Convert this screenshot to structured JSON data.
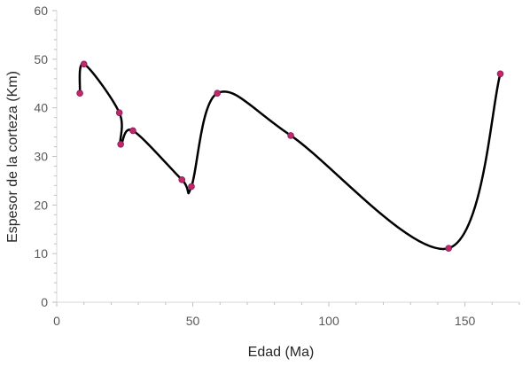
{
  "chart_data": {
    "type": "scatter",
    "title": "",
    "xlabel": "Edad (Ma)",
    "ylabel": "Espesor de la corteza (Km)",
    "xlim": [
      0,
      170
    ],
    "ylim": [
      0,
      60
    ],
    "x_ticks": [
      0,
      50,
      100,
      150
    ],
    "y_ticks": [
      0,
      10,
      20,
      30,
      40,
      50,
      60
    ],
    "grid": false,
    "legend": "none",
    "smooth_line": true,
    "line_color": "#000000",
    "marker_color": "#c0286e",
    "points": [
      {
        "x": 8.5,
        "y": 43
      },
      {
        "x": 10,
        "y": 49
      },
      {
        "x": 23,
        "y": 39
      },
      {
        "x": 23.5,
        "y": 32.5
      },
      {
        "x": 28,
        "y": 35.3
      },
      {
        "x": 46,
        "y": 25.2
      },
      {
        "x": 49.5,
        "y": 23.8
      },
      {
        "x": 59,
        "y": 43
      },
      {
        "x": 86,
        "y": 34.3
      },
      {
        "x": 144,
        "y": 11.1
      },
      {
        "x": 163,
        "y": 47
      }
    ]
  }
}
